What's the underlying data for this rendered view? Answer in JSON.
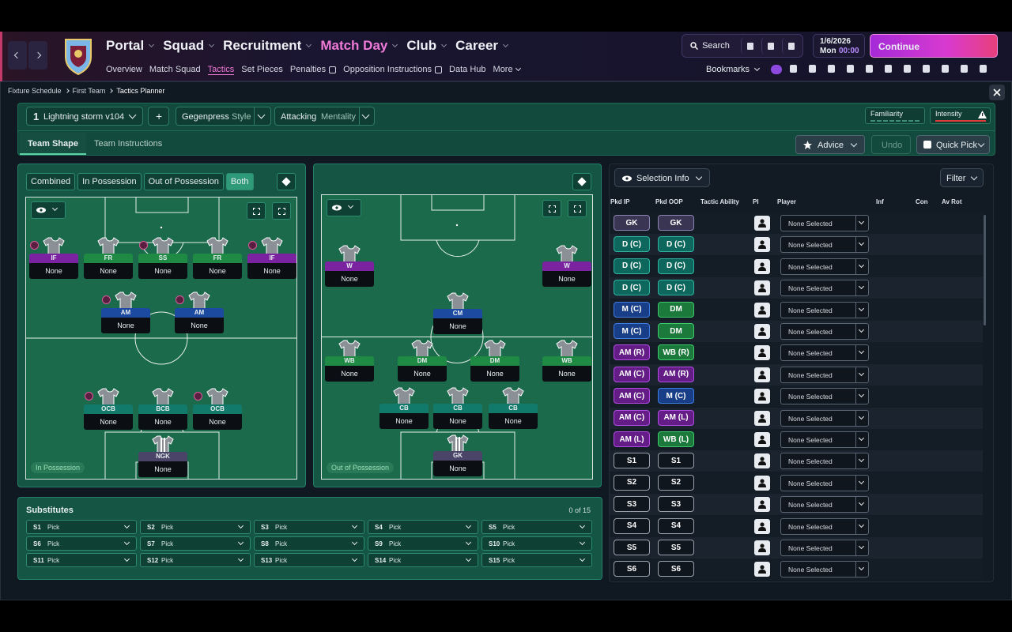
{
  "nav": {
    "main": [
      "Portal",
      "Squad",
      "Recruitment",
      "Match Day",
      "Club",
      "Career"
    ],
    "sub": [
      "Overview",
      "Match Squad",
      "Tactics",
      "Set Pieces",
      "Penalties",
      "Opposition Instructions",
      "Data Hub",
      "More"
    ],
    "search": "Search",
    "date": "1/6/2026",
    "day": "Mon",
    "time": "00:00",
    "continue": "Continue",
    "bookmarks": "Bookmarks"
  },
  "breadcrumb": [
    "Fixture Schedule",
    "First Team",
    "Tactics Planner"
  ],
  "toolbar": {
    "slot": "1",
    "tactic": "Lightning storm v104",
    "add": "+",
    "style": "Gegenpress",
    "style_label": "Style",
    "mentality": "Attacking",
    "mentality_label": "Mentality",
    "familiarity": "Familiarity",
    "intensity": "Intensity",
    "tabs": [
      "Team Shape",
      "Team Instructions"
    ],
    "advice": "Advice",
    "undo": "Undo",
    "quick_pick": "Quick Pick"
  },
  "view_modes": [
    "Combined",
    "In Possession",
    "Out of Possession",
    "Both"
  ],
  "pitches": [
    {
      "label": "In Possession",
      "players": [
        {
          "role": "IF",
          "player": "None"
        },
        {
          "role": "FR",
          "player": "None"
        },
        {
          "role": "SS",
          "player": "None"
        },
        {
          "role": "FR",
          "player": "None"
        },
        {
          "role": "IF",
          "player": "None"
        },
        {
          "role": "AM",
          "player": "None"
        },
        {
          "role": "AM",
          "player": "None"
        },
        {
          "role": "OCB",
          "player": "None"
        },
        {
          "role": "BCB",
          "player": "None"
        },
        {
          "role": "OCB",
          "player": "None"
        },
        {
          "role": "NGK",
          "player": "None"
        }
      ]
    },
    {
      "label": "Out of Possession",
      "players": [
        {
          "role": "W",
          "player": "None"
        },
        {
          "role": "W",
          "player": "None"
        },
        {
          "role": "CM",
          "player": "None"
        },
        {
          "role": "WB",
          "player": "None"
        },
        {
          "role": "DM",
          "player": "None"
        },
        {
          "role": "DM",
          "player": "None"
        },
        {
          "role": "WB",
          "player": "None"
        },
        {
          "role": "CB",
          "player": "None"
        },
        {
          "role": "CB",
          "player": "None"
        },
        {
          "role": "CB",
          "player": "None"
        },
        {
          "role": "GK",
          "player": "None"
        }
      ]
    }
  ],
  "substitutes": {
    "title": "Substitutes",
    "count": "0 of 15",
    "slots": [
      {
        "slot": "S1",
        "pick": "Pick"
      },
      {
        "slot": "S2",
        "pick": "Pick"
      },
      {
        "slot": "S3",
        "pick": "Pick"
      },
      {
        "slot": "S4",
        "pick": "Pick"
      },
      {
        "slot": "S5",
        "pick": "Pick"
      },
      {
        "slot": "S6",
        "pick": "Pick"
      },
      {
        "slot": "S7",
        "pick": "Pick"
      },
      {
        "slot": "S8",
        "pick": "Pick"
      },
      {
        "slot": "S9",
        "pick": "Pick"
      },
      {
        "slot": "S10",
        "pick": "Pick"
      },
      {
        "slot": "S11",
        "pick": "Pick"
      },
      {
        "slot": "S12",
        "pick": "Pick"
      },
      {
        "slot": "S13",
        "pick": "Pick"
      },
      {
        "slot": "S14",
        "pick": "Pick"
      },
      {
        "slot": "S15",
        "pick": "Pick"
      }
    ]
  },
  "selection": {
    "title": "Selection Info",
    "filter": "Filter",
    "headers": [
      "Pkd IP",
      "Pkd OOP",
      "Tactic Ability",
      "PI",
      "Player",
      "Inf",
      "Con",
      "Av Rot"
    ],
    "rows": [
      {
        "ip": "GK",
        "oop": "GK",
        "player": "None Selected"
      },
      {
        "ip": "D (C)",
        "oop": "D (C)",
        "player": "None Selected"
      },
      {
        "ip": "D (C)",
        "oop": "D (C)",
        "player": "None Selected"
      },
      {
        "ip": "D (C)",
        "oop": "D (C)",
        "player": "None Selected"
      },
      {
        "ip": "M (C)",
        "oop": "DM",
        "player": "None Selected"
      },
      {
        "ip": "M (C)",
        "oop": "DM",
        "player": "None Selected"
      },
      {
        "ip": "AM (R)",
        "oop": "WB (R)",
        "player": "None Selected"
      },
      {
        "ip": "AM (C)",
        "oop": "AM (R)",
        "player": "None Selected"
      },
      {
        "ip": "AM (C)",
        "oop": "M (C)",
        "player": "None Selected"
      },
      {
        "ip": "AM (C)",
        "oop": "AM (L)",
        "player": "None Selected"
      },
      {
        "ip": "AM (L)",
        "oop": "WB (L)",
        "player": "None Selected"
      },
      {
        "ip": "S1",
        "oop": "S1",
        "player": "None Selected"
      },
      {
        "ip": "S2",
        "oop": "S2",
        "player": "None Selected"
      },
      {
        "ip": "S3",
        "oop": "S3",
        "player": "None Selected"
      },
      {
        "ip": "S4",
        "oop": "S4",
        "player": "None Selected"
      },
      {
        "ip": "S5",
        "oop": "S5",
        "player": "None Selected"
      },
      {
        "ip": "S6",
        "oop": "S6",
        "player": "None Selected"
      }
    ]
  }
}
